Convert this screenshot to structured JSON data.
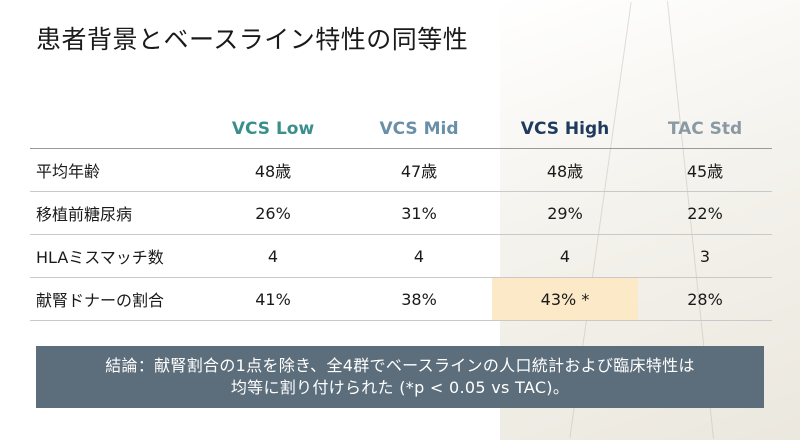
{
  "title": "患者背景とベースライン特性の同等性",
  "colors": {
    "vcs_low": "#3a8f8a",
    "vcs_mid": "#6a8fa8",
    "vcs_high": "#1e3a5f",
    "tac_std": "#8a9aa4",
    "highlight": "#fbe9c8",
    "conclusion_bg": "#5c6e7c"
  },
  "table": {
    "columns": [
      "",
      "VCS Low",
      "VCS Mid",
      "VCS High",
      "TAC Std"
    ],
    "rows": [
      {
        "label": "平均年齢",
        "values": [
          "48歳",
          "47歳",
          "48歳",
          "45歳"
        ]
      },
      {
        "label": "移植前糖尿病",
        "values": [
          "26%",
          "31%",
          "29%",
          "22%"
        ]
      },
      {
        "label": "HLAミスマッチ数",
        "values": [
          "4",
          "4",
          "4",
          "3"
        ]
      },
      {
        "label": "献腎ドナーの割合",
        "values": [
          "41%",
          "38%",
          "43% *",
          "28%"
        ]
      }
    ]
  },
  "conclusion": {
    "line1": "結論：献腎割合の1点を除き、全4群でベースラインの人口統計および臨床特性は",
    "line2": "均等に割り付けられた (*p < 0.05 vs TAC)。"
  }
}
